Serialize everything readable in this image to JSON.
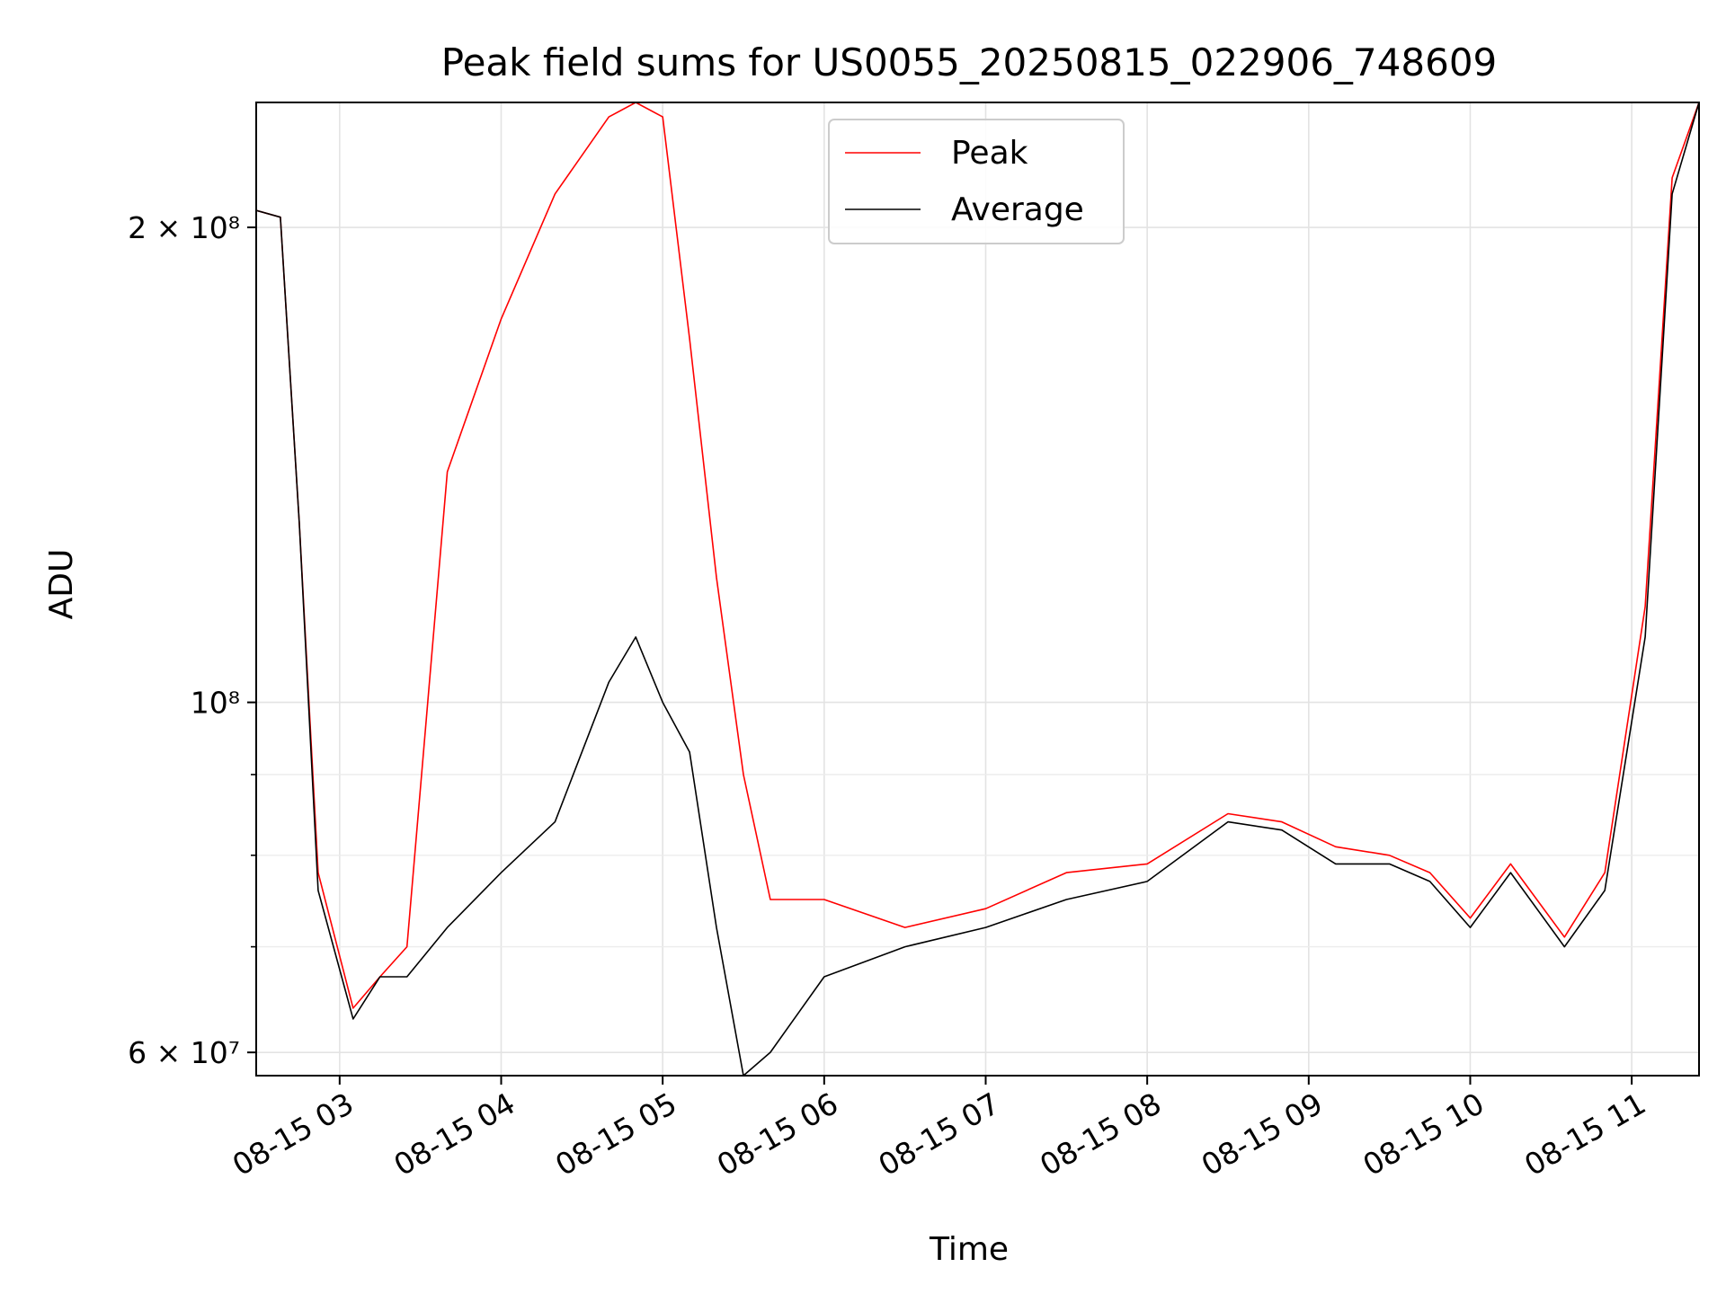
{
  "chart_data": {
    "type": "line",
    "title": "Peak field sums for US0055_20250815_022906_748609",
    "xlabel": "Time",
    "ylabel": "ADU",
    "yscale": "log",
    "ylim": [
      58000000,
      240000000
    ],
    "xlim": [
      "2025-08-15 02:29",
      "2025-08-15 11:25"
    ],
    "grid": true,
    "legend_position": "upper center",
    "x_ticks": [
      "08-15 03",
      "08-15 04",
      "08-15 05",
      "08-15 06",
      "08-15 07",
      "08-15 08",
      "08-15 09",
      "08-15 10",
      "08-15 11"
    ],
    "y_ticks": [
      {
        "value": 60000000,
        "label": "6 × 10⁷"
      },
      {
        "value": 100000000,
        "label": "10⁸"
      },
      {
        "value": 200000000,
        "label": "2 × 10⁸"
      }
    ],
    "y_minor_ticks": [
      70000000,
      80000000,
      90000000
    ],
    "x": [
      "2025-08-15 02:29",
      "2025-08-15 02:38",
      "2025-08-15 02:45",
      "2025-08-15 02:52",
      "2025-08-15 03:05",
      "2025-08-15 03:15",
      "2025-08-15 03:25",
      "2025-08-15 03:40",
      "2025-08-15 04:00",
      "2025-08-15 04:20",
      "2025-08-15 04:40",
      "2025-08-15 04:50",
      "2025-08-15 05:00",
      "2025-08-15 05:10",
      "2025-08-15 05:20",
      "2025-08-15 05:30",
      "2025-08-15 05:40",
      "2025-08-15 06:00",
      "2025-08-15 06:30",
      "2025-08-15 07:00",
      "2025-08-15 07:30",
      "2025-08-15 08:00",
      "2025-08-15 08:30",
      "2025-08-15 08:50",
      "2025-08-15 09:10",
      "2025-08-15 09:30",
      "2025-08-15 09:45",
      "2025-08-15 10:00",
      "2025-08-15 10:15",
      "2025-08-15 10:35",
      "2025-08-15 10:50",
      "2025-08-15 11:05",
      "2025-08-15 11:15",
      "2025-08-15 11:25"
    ],
    "series": [
      {
        "name": "Peak",
        "color": "#ff0000",
        "values": [
          205000000,
          203000000,
          130000000,
          78000000,
          64000000,
          67000000,
          70000000,
          140000000,
          175000000,
          210000000,
          235000000,
          240000000,
          235000000,
          170000000,
          120000000,
          90000000,
          75000000,
          75000000,
          72000000,
          74000000,
          78000000,
          79000000,
          85000000,
          84000000,
          81000000,
          80000000,
          78000000,
          73000000,
          79000000,
          71000000,
          78000000,
          115000000,
          215000000,
          240000000
        ]
      },
      {
        "name": "Average",
        "color": "#000000",
        "values": [
          205000000,
          203000000,
          130000000,
          76000000,
          63000000,
          67000000,
          67000000,
          72000000,
          78000000,
          84000000,
          103000000,
          110000000,
          100000000,
          93000000,
          72000000,
          58000000,
          60000000,
          67000000,
          70000000,
          72000000,
          75000000,
          77000000,
          84000000,
          83000000,
          79000000,
          79000000,
          77000000,
          72000000,
          78000000,
          70000000,
          76000000,
          110000000,
          210000000,
          240000000
        ]
      }
    ]
  }
}
